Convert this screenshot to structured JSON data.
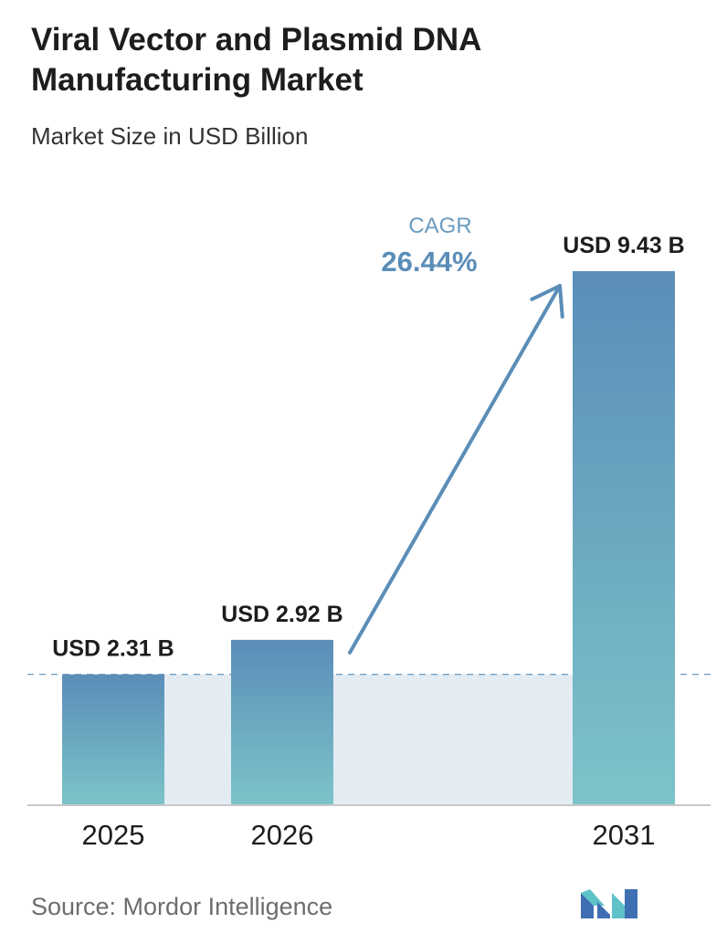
{
  "header": {
    "title": "Viral Vector and Plasmid DNA Manufacturing Market",
    "subtitle": "Market Size in USD Billion"
  },
  "chart_data": {
    "type": "bar",
    "categories": [
      "2025",
      "2026",
      "2031"
    ],
    "values": [
      2.31,
      2.92,
      9.43
    ],
    "value_labels": [
      "USD 2.31 B",
      "USD 2.92 B",
      "USD 9.43 B"
    ],
    "title": "Viral Vector and Plasmid DNA Manufacturing Market",
    "ylabel": "Market Size in USD Billion",
    "ylim": [
      0,
      11.8
    ],
    "grid": false,
    "annotation": {
      "label": "CAGR",
      "value": "26.44%"
    },
    "colors": {
      "bar_top": "#5b8db8",
      "bar_bottom": "#7cc4c9",
      "baseline_band": "#e3ebf3",
      "arrow": "#5b8db8",
      "cagr_label": "#6a9cc2",
      "cagr_value": "#5b8db8"
    }
  },
  "footer": {
    "source": "Source:  Mordor Intelligence",
    "logo_icon": "mordor-intelligence-logo-icon"
  }
}
